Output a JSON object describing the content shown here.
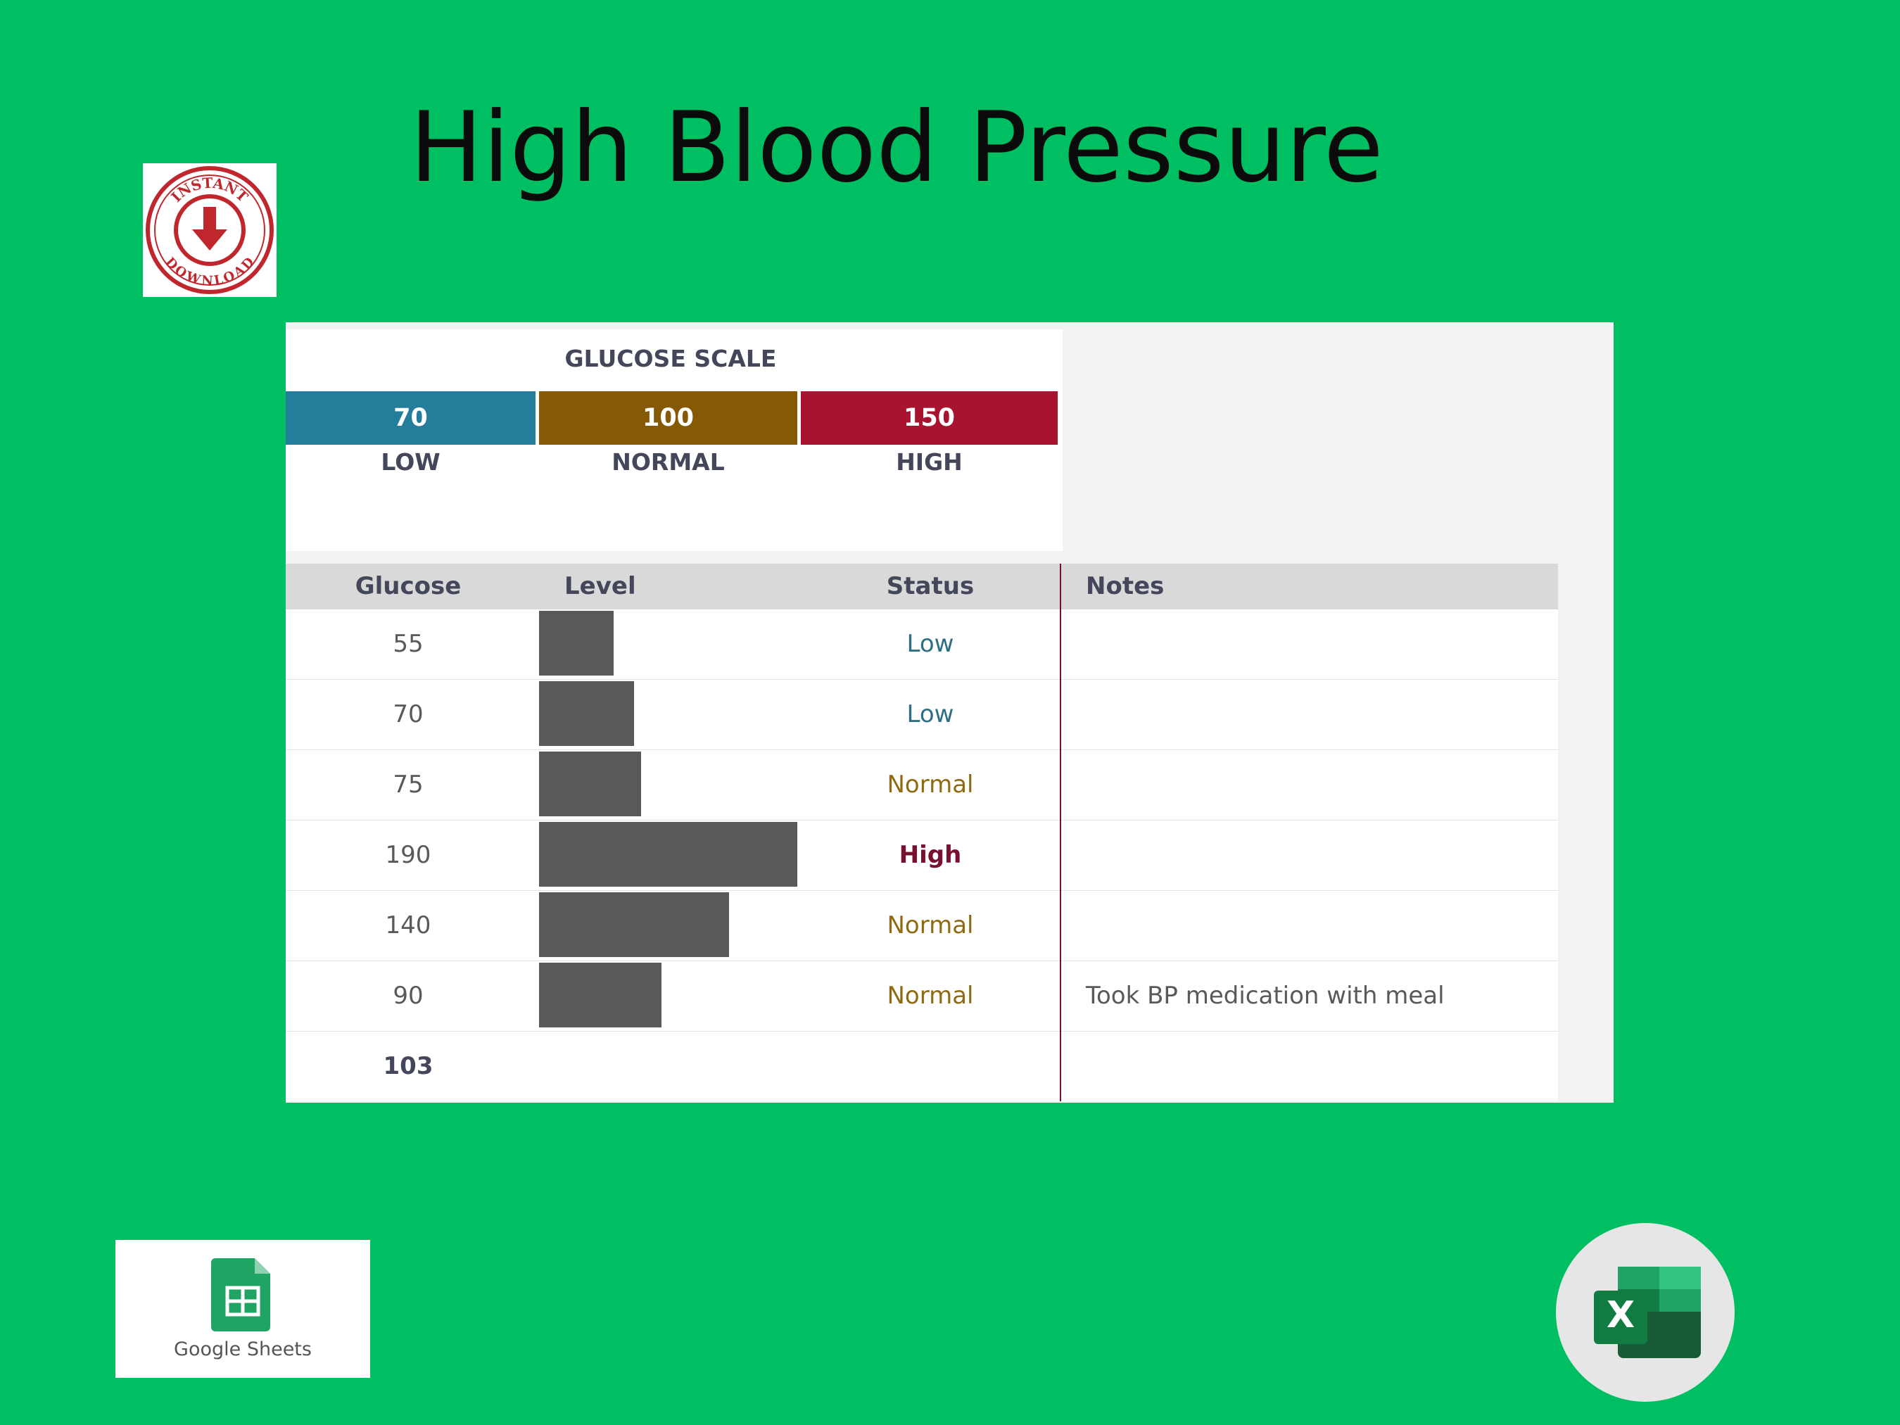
{
  "title": "High Blood Pressure",
  "stamp": {
    "top": "INSTANT",
    "bottom": "DOWNLOAD"
  },
  "scale": {
    "title": "GLUCOSE SCALE",
    "levels": [
      {
        "value": 70,
        "label": "LOW",
        "color": "#247d9a"
      },
      {
        "value": 100,
        "label": "NORMAL",
        "color": "#865a04"
      },
      {
        "value": 150,
        "label": "HIGH",
        "color": "#a8142f"
      }
    ]
  },
  "table": {
    "headers": [
      "Glucose",
      "Level",
      "Status",
      "Notes"
    ],
    "rows": [
      {
        "glucose": 55,
        "status": "Low"
      },
      {
        "glucose": 70,
        "status": "Low"
      },
      {
        "glucose": 75,
        "status": "Normal"
      },
      {
        "glucose": 190,
        "status": "High"
      },
      {
        "glucose": 140,
        "status": "Normal"
      },
      {
        "glucose": 90,
        "status": "Normal",
        "notes": "Took BP medication with meal"
      }
    ],
    "average": 103
  },
  "logos": {
    "google_sheets": "Google Sheets",
    "excel": "X"
  }
}
